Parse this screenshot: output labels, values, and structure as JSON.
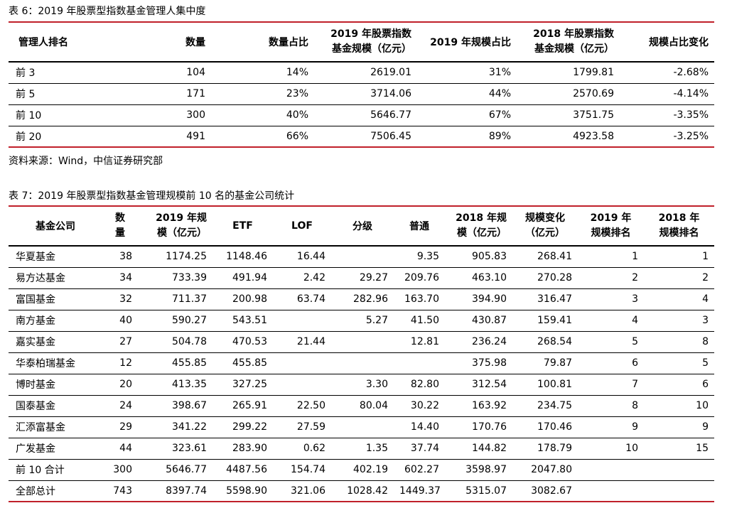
{
  "table6": {
    "caption": "表 6：2019 年股票型指数基金管理人集中度",
    "headers": [
      "管理人排名",
      "数量",
      "数量占比",
      "2019 年股票指数",
      "基金规模（亿元）",
      "2019 年规模占比",
      "2018 年股票指数",
      "基金规模（亿元）",
      "规模占比变化"
    ],
    "rows": [
      [
        "前 3",
        "104",
        "14%",
        "2619.01",
        "31%",
        "1799.81",
        "-2.68%"
      ],
      [
        "前 5",
        "171",
        "23%",
        "3714.06",
        "44%",
        "2570.69",
        "-4.14%"
      ],
      [
        "前 10",
        "300",
        "40%",
        "5646.77",
        "67%",
        "3751.75",
        "-3.35%"
      ],
      [
        "前 20",
        "491",
        "66%",
        "7506.45",
        "89%",
        "4923.58",
        "-3.25%"
      ]
    ],
    "source": "资料来源：Wind，中信证券研究部"
  },
  "table7": {
    "caption": "表 7：2019 年股票型指数基金管理规模前 10 名的基金公司统计",
    "headers": {
      "company": "基金公司",
      "count_1": "数",
      "count_2": "量",
      "scale2019_1": "2019 年规",
      "scale2019_2": "模（亿元）",
      "etf": "ETF",
      "lof": "LOF",
      "graded": "分级",
      "normal": "普通",
      "scale2018_1": "2018 年规",
      "scale2018_2": "模（亿元）",
      "change_1": "规模变化",
      "change_2": "（亿元）",
      "rank2019_1": "2019 年",
      "rank2019_2": "规模排名",
      "rank2018_1": "2018 年",
      "rank2018_2": "规模排名"
    },
    "rows": [
      [
        "华夏基金",
        "38",
        "1174.25",
        "1148.46",
        "16.44",
        "",
        "9.35",
        "905.83",
        "268.41",
        "1",
        "1"
      ],
      [
        "易方达基金",
        "34",
        "733.39",
        "491.94",
        "2.42",
        "29.27",
        "209.76",
        "463.10",
        "270.28",
        "2",
        "2"
      ],
      [
        "富国基金",
        "32",
        "711.37",
        "200.98",
        "63.74",
        "282.96",
        "163.70",
        "394.90",
        "316.47",
        "3",
        "4"
      ],
      [
        "南方基金",
        "40",
        "590.27",
        "543.51",
        "",
        "5.27",
        "41.50",
        "430.87",
        "159.41",
        "4",
        "3"
      ],
      [
        "嘉实基金",
        "27",
        "504.78",
        "470.53",
        "21.44",
        "",
        "12.81",
        "236.24",
        "268.54",
        "5",
        "8"
      ],
      [
        "华泰柏瑞基金",
        "12",
        "455.85",
        "455.85",
        "",
        "",
        "",
        "375.98",
        "79.87",
        "6",
        "5"
      ],
      [
        "博时基金",
        "20",
        "413.35",
        "327.25",
        "",
        "3.30",
        "82.80",
        "312.54",
        "100.81",
        "7",
        "6"
      ],
      [
        "国泰基金",
        "24",
        "398.67",
        "265.91",
        "22.50",
        "80.04",
        "30.22",
        "163.92",
        "234.75",
        "8",
        "10"
      ],
      [
        "汇添富基金",
        "29",
        "341.22",
        "299.22",
        "27.59",
        "",
        "14.40",
        "170.76",
        "170.46",
        "9",
        "9"
      ],
      [
        "广发基金",
        "44",
        "323.61",
        "283.90",
        "0.62",
        "1.35",
        "37.74",
        "144.82",
        "178.79",
        "10",
        "15"
      ],
      [
        "前 10 合计",
        "300",
        "5646.77",
        "4487.56",
        "154.74",
        "402.19",
        "602.27",
        "3598.97",
        "2047.80",
        "",
        ""
      ],
      [
        "全部总计",
        "743",
        "8397.74",
        "5598.90",
        "321.06",
        "1028.42",
        "1449.37",
        "5315.07",
        "3082.67",
        "",
        ""
      ]
    ]
  }
}
